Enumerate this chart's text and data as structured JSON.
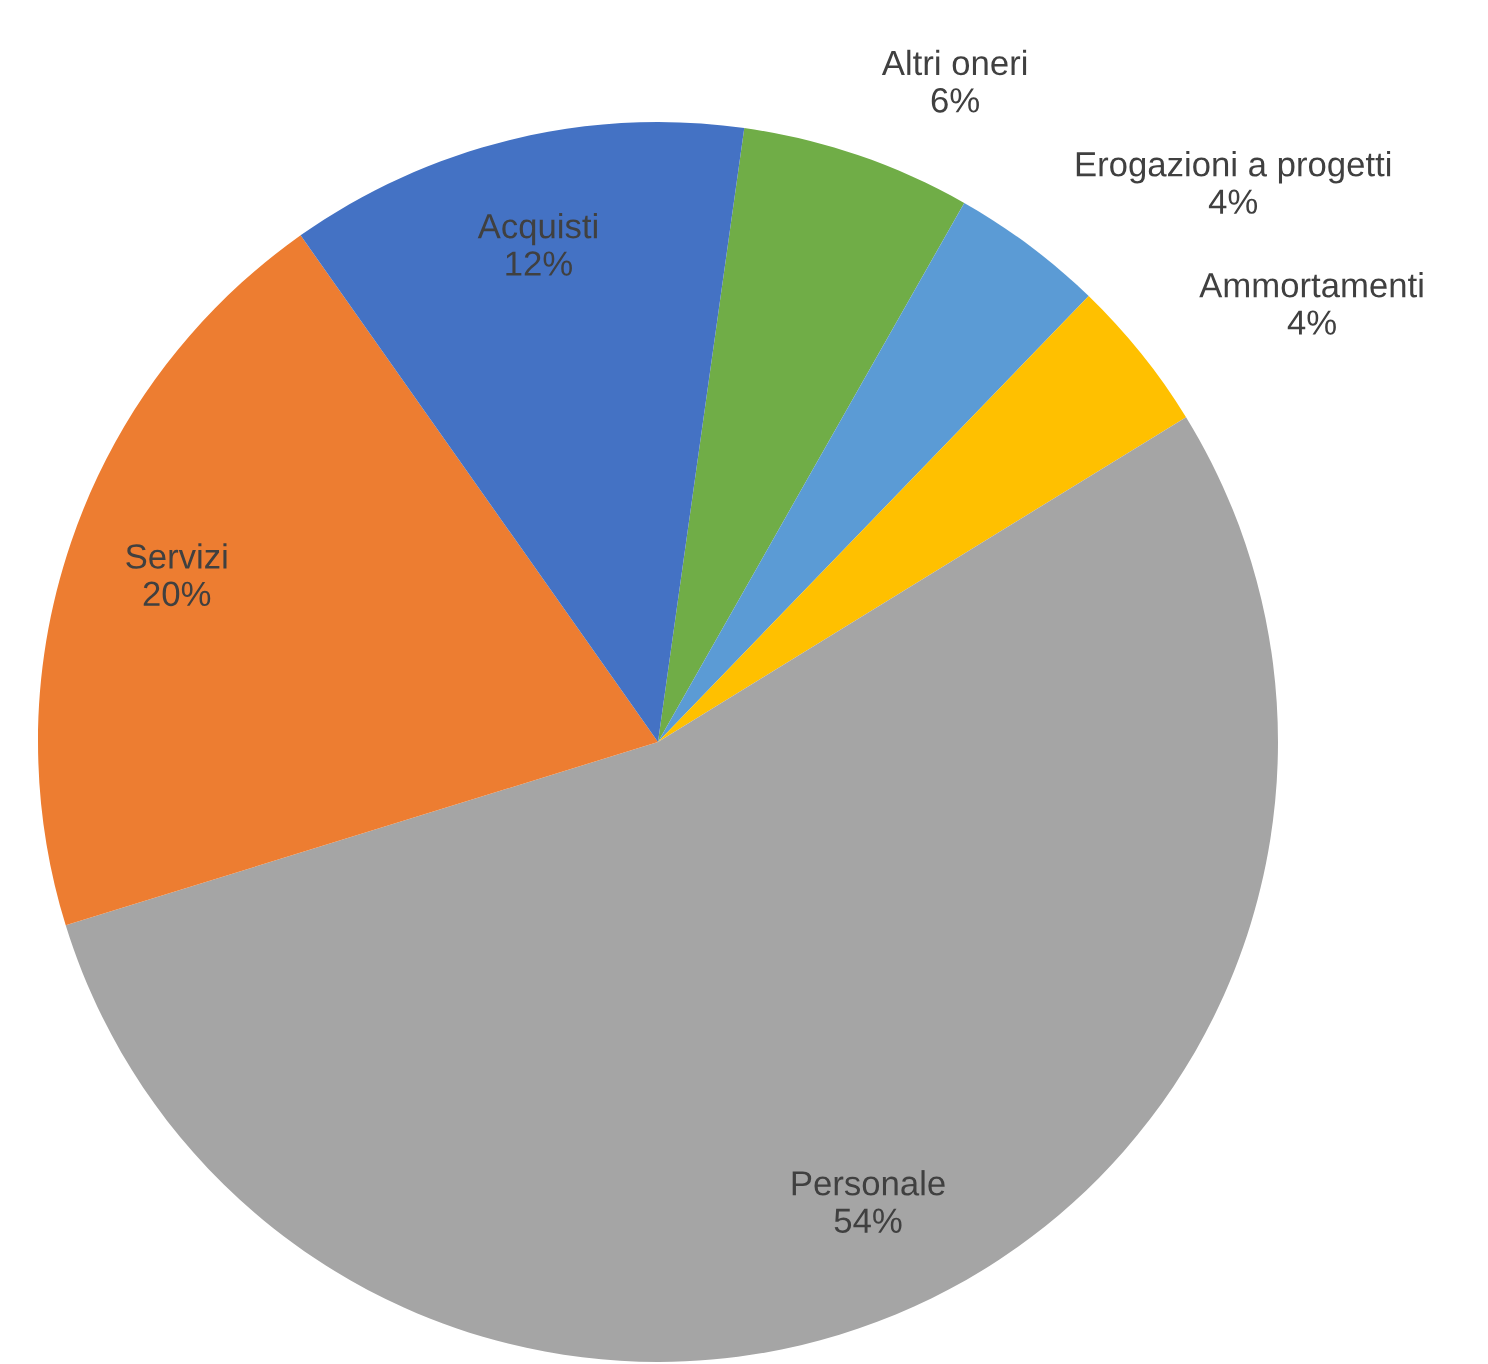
{
  "chart_data": {
    "type": "pie",
    "categories": [
      "Altri oneri",
      "Erogazioni a progetti",
      "Ammortamenti",
      "Personale",
      "Servizi",
      "Acquisti"
    ],
    "values": [
      6,
      4,
      4,
      54,
      20,
      12
    ],
    "colors": [
      "#70ad47",
      "#5b9bd5",
      "#ffc000",
      "#a5a5a5",
      "#ed7d31",
      "#4472c4"
    ],
    "value_labels": [
      "6%",
      "4%",
      "4%",
      "54%",
      "20%",
      "12%"
    ]
  }
}
